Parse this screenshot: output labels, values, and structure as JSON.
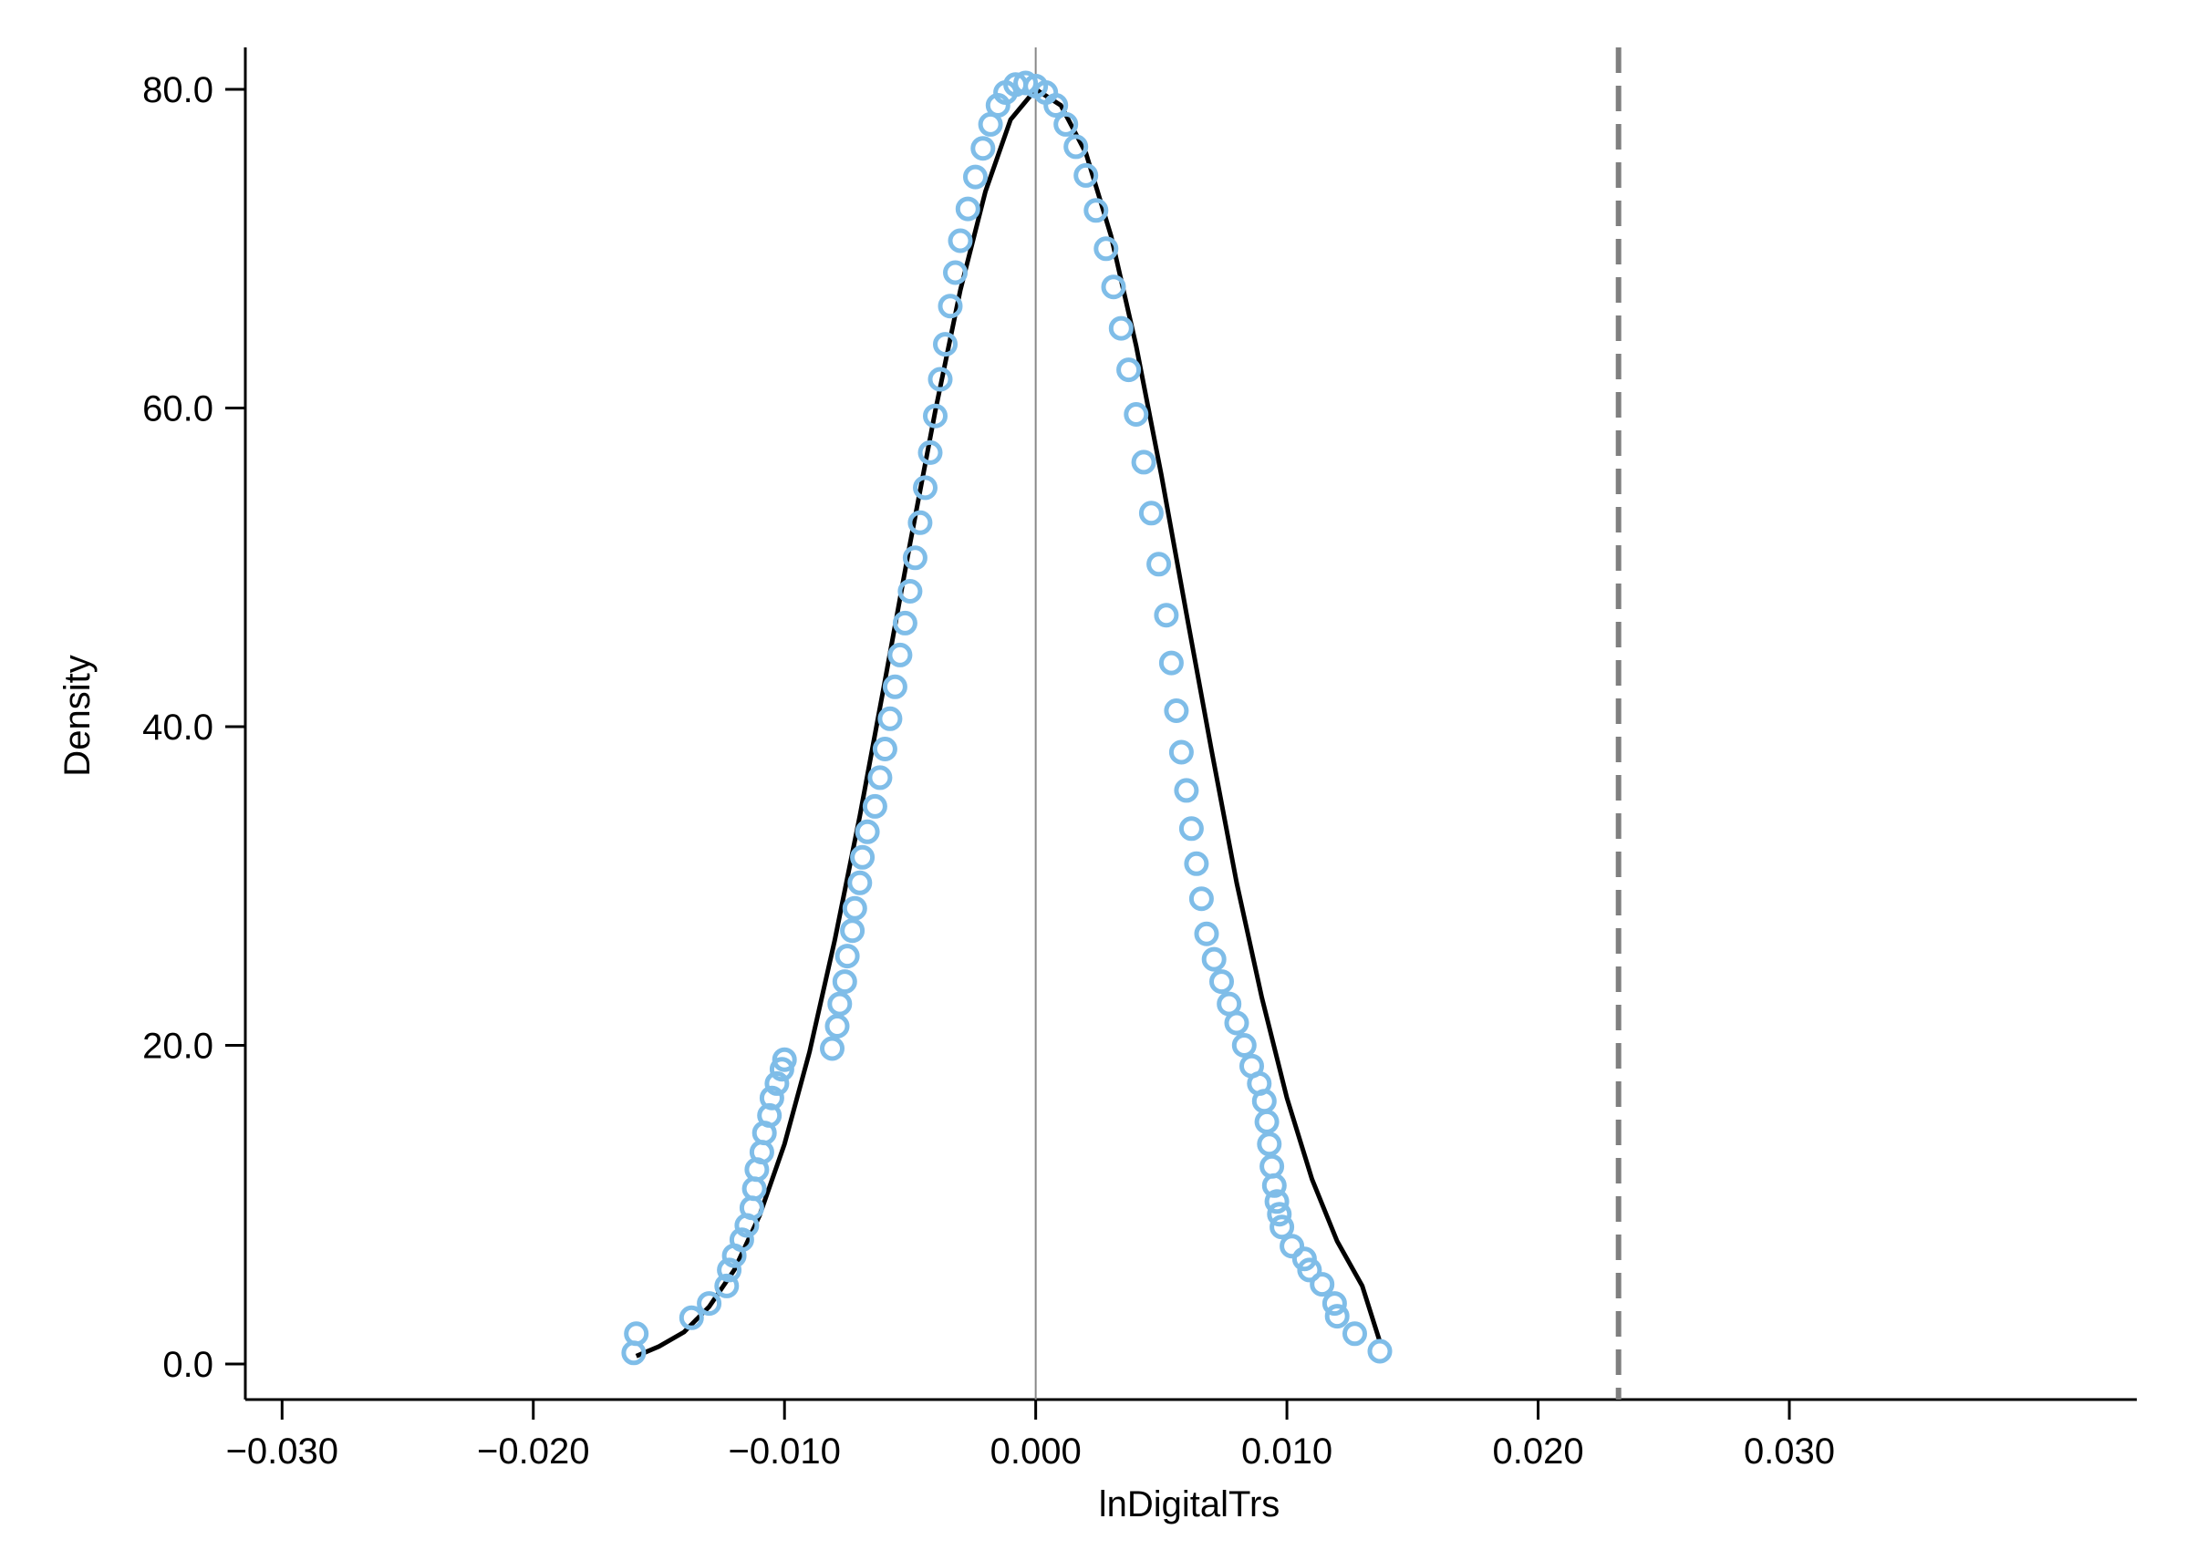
{
  "chart_data": {
    "type": "scatter",
    "title": "",
    "xlabel": "lnDigitalTrs",
    "ylabel": "Density",
    "xlim": [
      -0.031,
      0.031
    ],
    "ylim": [
      -2,
      83
    ],
    "x_ticks": [
      -0.03,
      -0.02,
      -0.01,
      0.0,
      0.01,
      0.02,
      0.03
    ],
    "x_tick_labels": [
      "−0.030",
      "−0.020",
      "−0.010",
      "0.000",
      "0.010",
      "0.020",
      "0.030"
    ],
    "y_ticks": [
      0,
      20,
      40,
      60,
      80
    ],
    "y_tick_labels": [
      "0.0",
      "20.0",
      "40.0",
      "60.0",
      "80.0"
    ],
    "grid": false,
    "legend": "none",
    "reference_lines": [
      {
        "axis": "x",
        "value": 0.0,
        "style": "solid",
        "color": "#888888"
      },
      {
        "axis": "x",
        "value": 0.0232,
        "style": "dashed",
        "color": "#7f7f7f"
      }
    ],
    "series": [
      {
        "kind": "line",
        "color": "#000000",
        "points": [
          [
            -0.0159,
            0.5
          ],
          [
            -0.015,
            1.1
          ],
          [
            -0.014,
            2.0
          ],
          [
            -0.013,
            3.6
          ],
          [
            -0.012,
            5.9
          ],
          [
            -0.011,
            9.3
          ],
          [
            -0.01,
            13.8
          ],
          [
            -0.009,
            19.6
          ],
          [
            -0.008,
            26.6
          ],
          [
            -0.007,
            34.4
          ],
          [
            -0.006,
            42.9
          ],
          [
            -0.005,
            51.5
          ],
          [
            -0.004,
            59.8
          ],
          [
            -0.003,
            67.4
          ],
          [
            -0.002,
            73.6
          ],
          [
            -0.001,
            78.1
          ],
          [
            0.0,
            80.0
          ],
          [
            0.001,
            79.0
          ],
          [
            0.002,
            76.0
          ],
          [
            0.003,
            70.8
          ],
          [
            0.004,
            63.9
          ],
          [
            0.005,
            55.8
          ],
          [
            0.006,
            47.1
          ],
          [
            0.007,
            38.5
          ],
          [
            0.008,
            30.2
          ],
          [
            0.009,
            23.0
          ],
          [
            0.01,
            16.7
          ],
          [
            0.011,
            11.6
          ],
          [
            0.012,
            7.7
          ],
          [
            0.013,
            4.9
          ],
          [
            0.0137,
            1.4
          ]
        ]
      },
      {
        "kind": "scatter",
        "marker": "hollow-circle",
        "color": "#7fbde8",
        "points": [
          [
            -0.016,
            0.7
          ],
          [
            -0.0159,
            1.9
          ],
          [
            -0.0137,
            2.9
          ],
          [
            -0.013,
            3.8
          ],
          [
            -0.0123,
            4.9
          ],
          [
            -0.0122,
            5.9
          ],
          [
            -0.012,
            6.8
          ],
          [
            -0.0117,
            7.8
          ],
          [
            -0.0115,
            8.7
          ],
          [
            -0.0113,
            9.8
          ],
          [
            -0.0112,
            11.0
          ],
          [
            -0.0111,
            12.2
          ],
          [
            -0.0109,
            13.3
          ],
          [
            -0.0108,
            14.5
          ],
          [
            -0.0106,
            15.6
          ],
          [
            -0.0105,
            16.7
          ],
          [
            -0.0103,
            17.6
          ],
          [
            -0.0101,
            18.5
          ],
          [
            -0.01,
            19.1
          ],
          [
            -0.0081,
            19.8
          ],
          [
            -0.0079,
            21.2
          ],
          [
            -0.0078,
            22.6
          ],
          [
            -0.0076,
            24.0
          ],
          [
            -0.0075,
            25.6
          ],
          [
            -0.0073,
            27.2
          ],
          [
            -0.0072,
            28.6
          ],
          [
            -0.007,
            30.2
          ],
          [
            -0.0069,
            31.8
          ],
          [
            -0.0067,
            33.4
          ],
          [
            -0.0064,
            35.0
          ],
          [
            -0.0062,
            36.8
          ],
          [
            -0.006,
            38.6
          ],
          [
            -0.0058,
            40.5
          ],
          [
            -0.0056,
            42.5
          ],
          [
            -0.0054,
            44.5
          ],
          [
            -0.0052,
            46.5
          ],
          [
            -0.005,
            48.5
          ],
          [
            -0.0048,
            50.6
          ],
          [
            -0.0046,
            52.8
          ],
          [
            -0.0044,
            55.0
          ],
          [
            -0.0042,
            57.2
          ],
          [
            -0.004,
            59.5
          ],
          [
            -0.0038,
            61.8
          ],
          [
            -0.0036,
            64.0
          ],
          [
            -0.0034,
            66.4
          ],
          [
            -0.0032,
            68.5
          ],
          [
            -0.003,
            70.5
          ],
          [
            -0.0027,
            72.5
          ],
          [
            -0.0024,
            74.5
          ],
          [
            -0.0021,
            76.3
          ],
          [
            -0.0018,
            77.8
          ],
          [
            -0.0015,
            79.0
          ],
          [
            -0.0012,
            79.8
          ],
          [
            -0.0008,
            80.3
          ],
          [
            -0.0004,
            80.4
          ],
          [
            0.0,
            80.2
          ],
          [
            0.0004,
            79.8
          ],
          [
            0.0008,
            79.0
          ],
          [
            0.0012,
            77.8
          ],
          [
            0.0016,
            76.4
          ],
          [
            0.002,
            74.6
          ],
          [
            0.0024,
            72.4
          ],
          [
            0.0028,
            70.0
          ],
          [
            0.0031,
            67.6
          ],
          [
            0.0034,
            65.0
          ],
          [
            0.0037,
            62.4
          ],
          [
            0.004,
            59.6
          ],
          [
            0.0043,
            56.6
          ],
          [
            0.0046,
            53.4
          ],
          [
            0.0049,
            50.2
          ],
          [
            0.0052,
            47.0
          ],
          [
            0.0054,
            44.0
          ],
          [
            0.0056,
            41.0
          ],
          [
            0.0058,
            38.4
          ],
          [
            0.006,
            36.0
          ],
          [
            0.0062,
            33.6
          ],
          [
            0.0064,
            31.4
          ],
          [
            0.0066,
            29.2
          ],
          [
            0.0068,
            27.0
          ],
          [
            0.0071,
            25.4
          ],
          [
            0.0074,
            24.0
          ],
          [
            0.0077,
            22.6
          ],
          [
            0.008,
            21.4
          ],
          [
            0.0083,
            20.0
          ],
          [
            0.0086,
            18.7
          ],
          [
            0.0089,
            17.6
          ],
          [
            0.0091,
            16.5
          ],
          [
            0.0092,
            15.2
          ],
          [
            0.0093,
            13.8
          ],
          [
            0.0094,
            12.4
          ],
          [
            0.0095,
            11.2
          ],
          [
            0.0096,
            10.2
          ],
          [
            0.0097,
            9.4
          ],
          [
            0.0098,
            8.6
          ],
          [
            0.0102,
            7.4
          ],
          [
            0.0107,
            6.6
          ],
          [
            0.0109,
            5.9
          ],
          [
            0.0114,
            5.0
          ],
          [
            0.0119,
            3.8
          ],
          [
            0.012,
            3.0
          ],
          [
            0.0127,
            1.9
          ],
          [
            0.0137,
            0.8
          ]
        ]
      }
    ]
  }
}
